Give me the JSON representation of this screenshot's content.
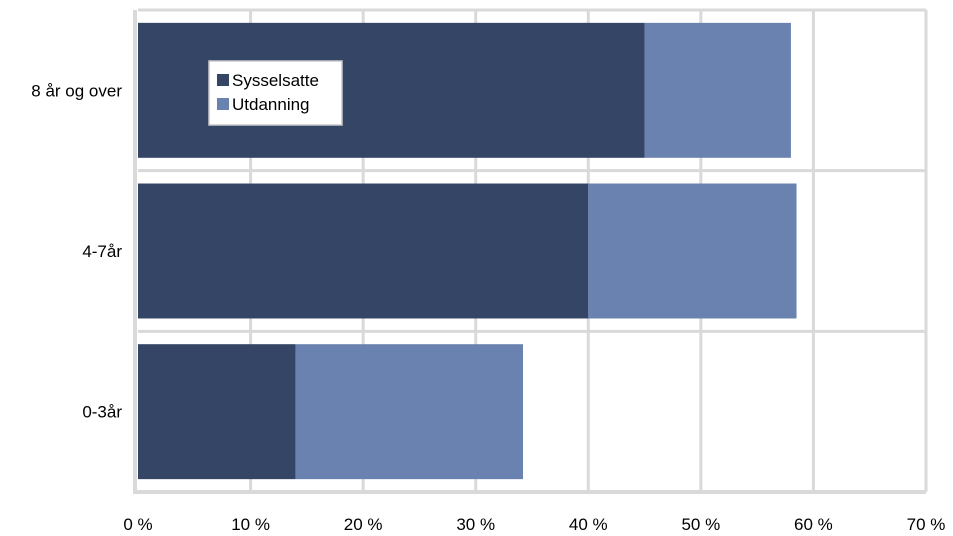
{
  "chart_data": {
    "type": "bar",
    "orientation": "horizontal",
    "stacked": true,
    "categories": [
      "8 år og over",
      "4-7år",
      "0-3år"
    ],
    "series": [
      {
        "name": "Sysselsatte",
        "values": [
          45,
          40,
          14
        ],
        "color": "#344566"
      },
      {
        "name": "Utdanning",
        "values": [
          13,
          18.5,
          20.2
        ],
        "color": "#6a82b0"
      }
    ],
    "x_ticks": [
      "0 %",
      "10 %",
      "20 %",
      "30 %",
      "40 %",
      "50 %",
      "60 %",
      "70 %"
    ],
    "xlim": [
      0,
      70
    ],
    "title": "",
    "xlabel": "",
    "ylabel": "",
    "grid": true,
    "grid_color": "#d9d9d9",
    "legend_position": "top-left, inside plot"
  }
}
